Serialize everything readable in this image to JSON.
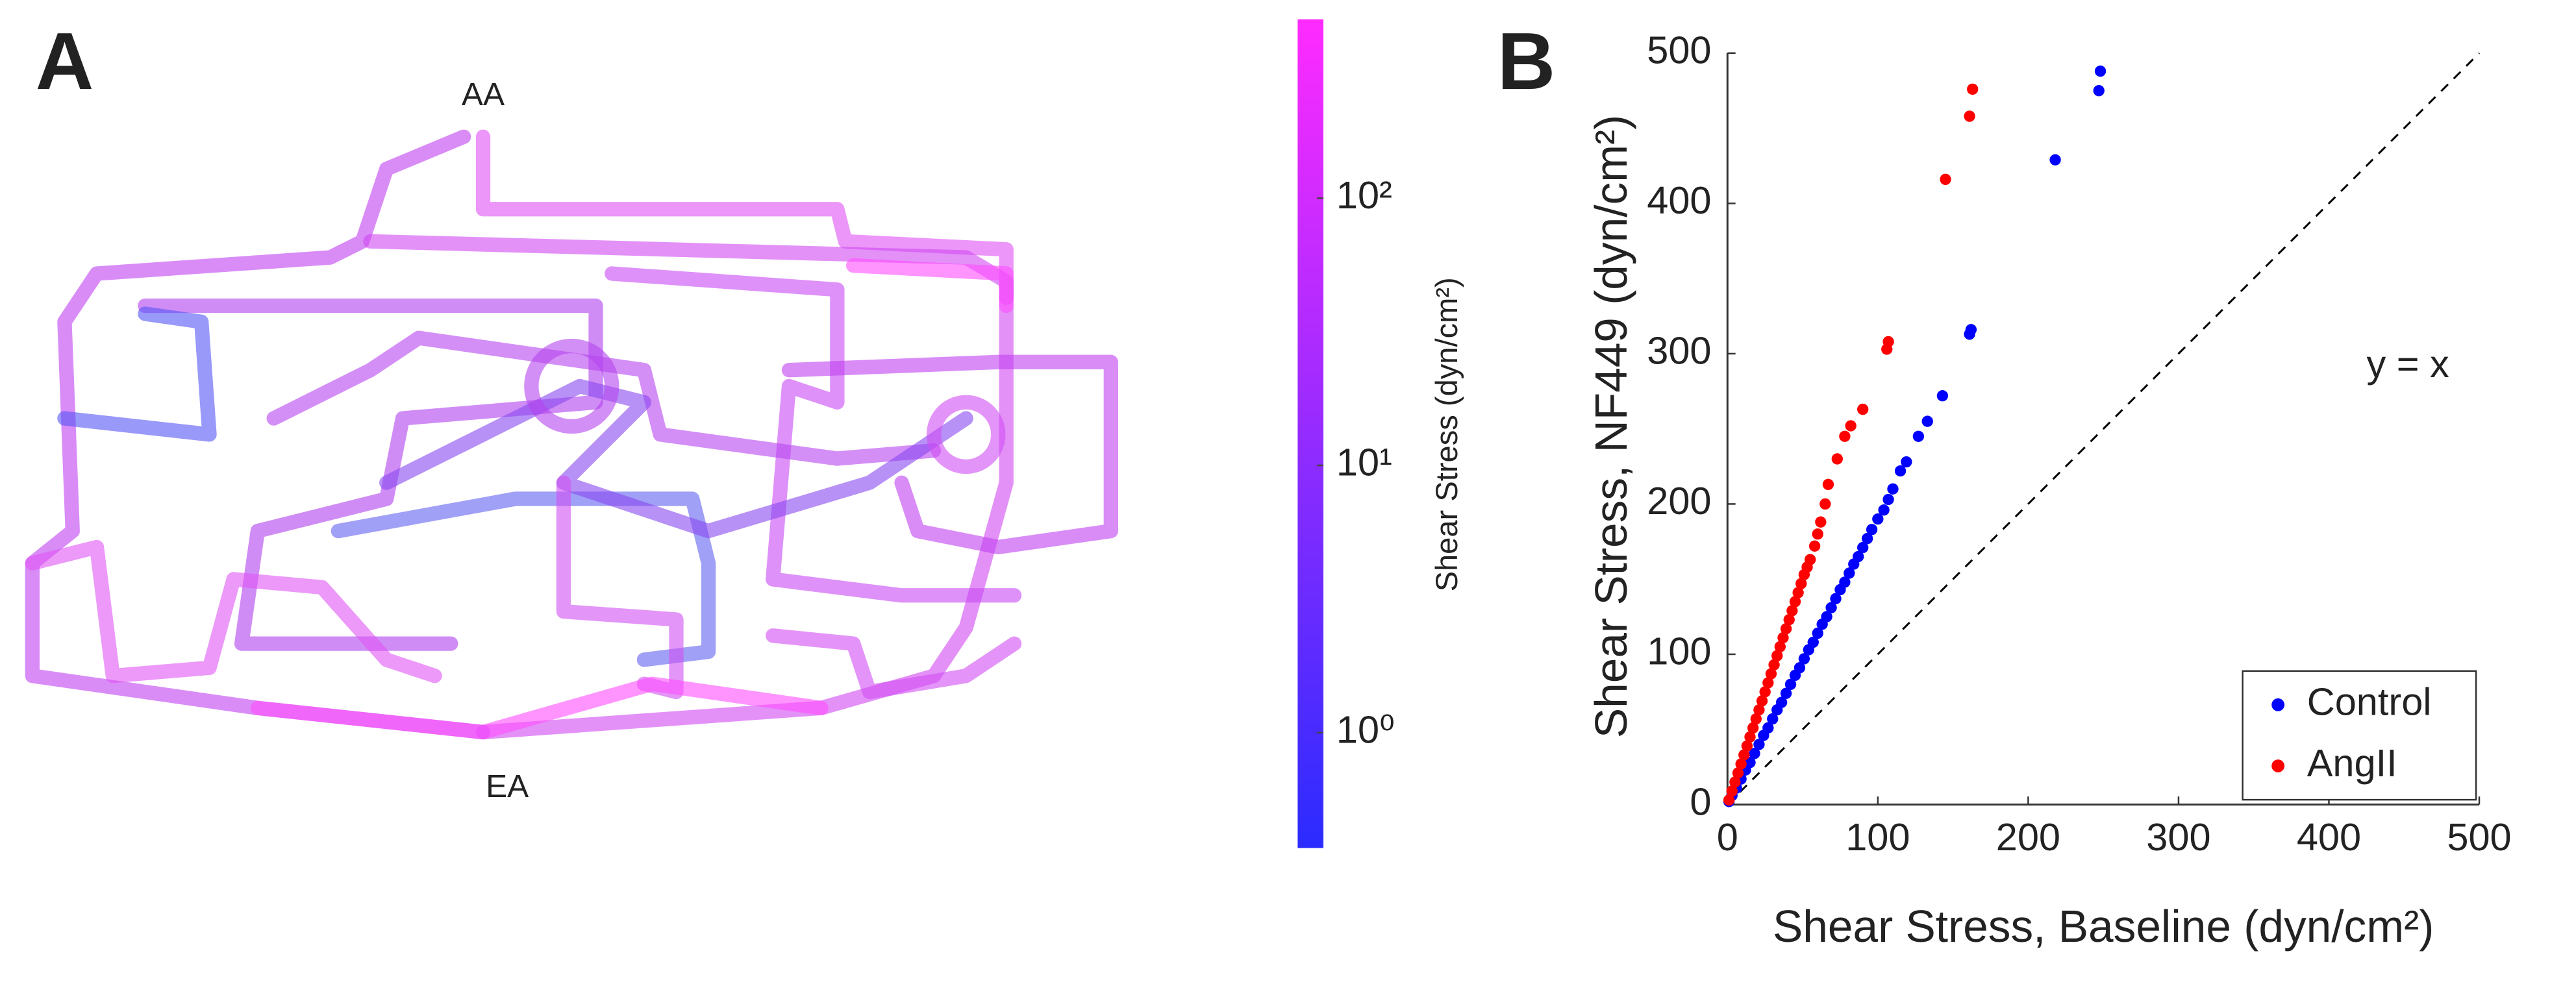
{
  "chart_data": [
    {
      "type": "network",
      "panel_label": "A",
      "node_labels": [
        "AA",
        "EA"
      ],
      "colorbar": {
        "label": "Shear Stress (dyn/cm²)",
        "log": true,
        "ylim": [
          0.37,
          467
        ],
        "yticks": [
          {
            "value": 1,
            "label": "10⁰"
          },
          {
            "value": 10,
            "label": "10¹"
          },
          {
            "value": 100,
            "label": "10²"
          }
        ],
        "colormap": [
          "#2b2bff",
          "#ff2bff"
        ]
      }
    },
    {
      "type": "scatter",
      "panel_label": "B",
      "xlabel": "Shear Stress, Baseline (dyn/cm²)",
      "ylabel": "Shear Stress, NF449 (dyn/cm²)",
      "xlim": [
        0,
        500
      ],
      "ylim": [
        0,
        500
      ],
      "xticks": [
        0,
        100,
        200,
        300,
        400,
        500
      ],
      "yticks": [
        0,
        100,
        200,
        300,
        400,
        500
      ],
      "annotation": "y = x",
      "legend": "lower right",
      "series": [
        {
          "name": "Control",
          "color": "#0000ff",
          "x": [
            1,
            3,
            6,
            9,
            12,
            15,
            18,
            21,
            24,
            27,
            30,
            33,
            36,
            39,
            42,
            45,
            48,
            51,
            54,
            57,
            60,
            63,
            66,
            69,
            72,
            75,
            78,
            81,
            84,
            87,
            90,
            93,
            96,
            100,
            104,
            107,
            110,
            115,
            119,
            127,
            133,
            143,
            161,
            162,
            218,
            247,
            248
          ],
          "y": [
            2,
            6,
            11,
            17,
            23,
            28,
            34,
            40,
            46,
            51,
            57,
            63,
            68,
            74,
            80,
            86,
            91,
            97,
            103,
            108,
            114,
            120,
            125,
            131,
            137,
            143,
            148,
            154,
            160,
            165,
            171,
            177,
            183,
            190,
            196,
            203,
            210,
            222,
            228,
            245,
            255,
            272,
            313,
            316,
            429,
            475,
            488
          ]
        },
        {
          "name": "AngII",
          "color": "#ff0000",
          "x": [
            1,
            3,
            5,
            7,
            9,
            11,
            13,
            15,
            17,
            19,
            21,
            23,
            25,
            27,
            29,
            31,
            33,
            35,
            37,
            39,
            41,
            43,
            45,
            47,
            49,
            51,
            53,
            55,
            58,
            60,
            62,
            65,
            67,
            73,
            78,
            82,
            90,
            106,
            107,
            145,
            161,
            163
          ],
          "y": [
            3,
            9,
            15,
            21,
            27,
            33,
            39,
            45,
            51,
            57,
            63,
            69,
            75,
            81,
            87,
            93,
            99,
            105,
            111,
            117,
            123,
            129,
            135,
            141,
            147,
            153,
            158,
            163,
            172,
            180,
            188,
            200,
            213,
            230,
            245,
            252,
            263,
            303,
            308,
            416,
            458,
            476
          ]
        }
      ]
    }
  ]
}
